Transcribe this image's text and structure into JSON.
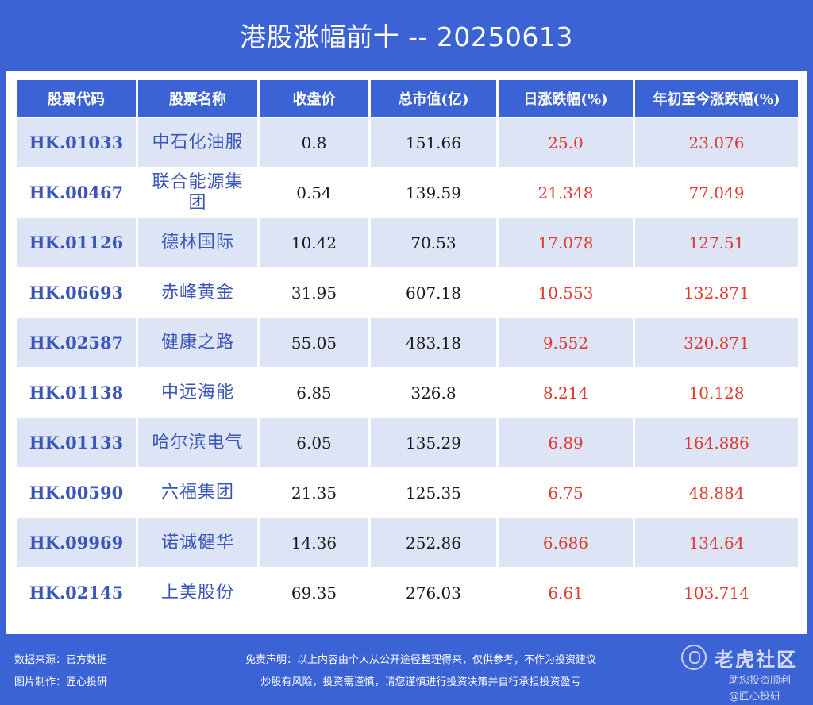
{
  "title": "港股涨幅前十 -- 20250613",
  "table": {
    "headers": [
      "股票代码",
      "股票名称",
      "收盘价",
      "总市值(亿)",
      "日涨跌幅(%)",
      "年初至今涨跌幅(%)"
    ],
    "rows": [
      {
        "code": "HK.01033",
        "name": "中石化油服",
        "close": "0.8",
        "mcap": "151.66",
        "day": "25.0",
        "ytd": "23.076"
      },
      {
        "code": "HK.00467",
        "name": "联合能源集团",
        "close": "0.54",
        "mcap": "139.59",
        "day": "21.348",
        "ytd": "77.049"
      },
      {
        "code": "HK.01126",
        "name": "德林国际",
        "close": "10.42",
        "mcap": "70.53",
        "day": "17.078",
        "ytd": "127.51"
      },
      {
        "code": "HK.06693",
        "name": "赤峰黄金",
        "close": "31.95",
        "mcap": "607.18",
        "day": "10.553",
        "ytd": "132.871"
      },
      {
        "code": "HK.02587",
        "name": "健康之路",
        "close": "55.05",
        "mcap": "483.18",
        "day": "9.552",
        "ytd": "320.871"
      },
      {
        "code": "HK.01138",
        "name": "中远海能",
        "close": "6.85",
        "mcap": "326.8",
        "day": "8.214",
        "ytd": "10.128"
      },
      {
        "code": "HK.01133",
        "name": "哈尔滨电气",
        "close": "6.05",
        "mcap": "135.29",
        "day": "6.89",
        "ytd": "164.886"
      },
      {
        "code": "HK.00590",
        "name": "六福集团",
        "close": "21.35",
        "mcap": "125.35",
        "day": "6.75",
        "ytd": "48.884"
      },
      {
        "code": "HK.09969",
        "name": "诺诚健华",
        "close": "14.36",
        "mcap": "252.86",
        "day": "6.686",
        "ytd": "134.64"
      },
      {
        "code": "HK.02145",
        "name": "上美股份",
        "close": "69.35",
        "mcap": "276.03",
        "day": "6.61",
        "ytd": "103.714"
      }
    ]
  },
  "footer": {
    "source": "数据来源：官方数据",
    "maker": "图片制作：匠心投研",
    "disclaimer1": "免责声明：以上内容由个人从公开途径整理得来，仅供参考，不作为投资建议",
    "disclaimer2": "炒股有风险，投资需谨慎，请您谨慎进行投资决策并自行承担投资盈亏",
    "logo_text": "老虎社区",
    "watermark_line1": "助您投资顺利",
    "watermark_line2": "@匠心投研"
  },
  "colors": {
    "background": "#3b63d6",
    "header_bg": "#3b63d6",
    "row_alt_bg": "#dde4f6",
    "code_text": "#3a56b8",
    "positive_text": "#e2382d"
  },
  "icons": [
    "tiger-logo-icon"
  ]
}
